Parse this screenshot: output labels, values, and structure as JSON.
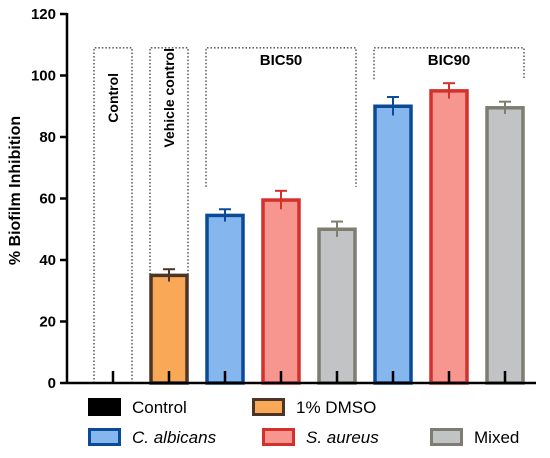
{
  "chart_data": {
    "type": "bar",
    "title": "",
    "ylabel": "% Biofilm Inhibition",
    "ylim": [
      0,
      120
    ],
    "yticks": [
      0,
      20,
      40,
      60,
      80,
      100,
      120
    ],
    "grid": false,
    "bars": [
      {
        "series": "Control",
        "value": 0,
        "error": 0
      },
      {
        "series": "1% DMSO",
        "value": 35,
        "error": 2
      },
      {
        "series": "C. albicans",
        "value": 54.5,
        "error": 2
      },
      {
        "series": "S. aureus",
        "value": 59.5,
        "error": 3
      },
      {
        "series": "Mixed",
        "value": 50,
        "error": 2.5
      },
      {
        "series": "C. albicans",
        "value": 90,
        "error": 3
      },
      {
        "series": "S. aureus",
        "value": 95,
        "error": 2.5
      },
      {
        "series": "Mixed",
        "value": 89.5,
        "error": 2
      }
    ],
    "groups": [
      {
        "label": "Control",
        "orientation": "vertical",
        "bars": [
          0
        ]
      },
      {
        "label": "Vehicle control",
        "orientation": "vertical",
        "bars": [
          1
        ]
      },
      {
        "label": "BIC50",
        "orientation": "horizontal",
        "bars": [
          2,
          3,
          4
        ]
      },
      {
        "label": "BIC90",
        "orientation": "horizontal",
        "bars": [
          5,
          6,
          7
        ]
      }
    ],
    "legend": {
      "placement": "bottom",
      "entries": [
        {
          "name": "Control",
          "fill": "#000000",
          "stroke": "#000000",
          "italic": false
        },
        {
          "name": "1% DMSO",
          "fill": "#f8a856",
          "stroke": "#4a3526",
          "italic": false
        },
        {
          "name": "C. albicans",
          "fill": "#86b6ee",
          "stroke": "#0a4a96",
          "italic": true
        },
        {
          "name": "S. aureus",
          "fill": "#f7958f",
          "stroke": "#d4302c",
          "italic": true
        },
        {
          "name": "Mixed",
          "fill": "#c2c3c4",
          "stroke": "#7d7d72",
          "italic": false
        }
      ]
    }
  }
}
